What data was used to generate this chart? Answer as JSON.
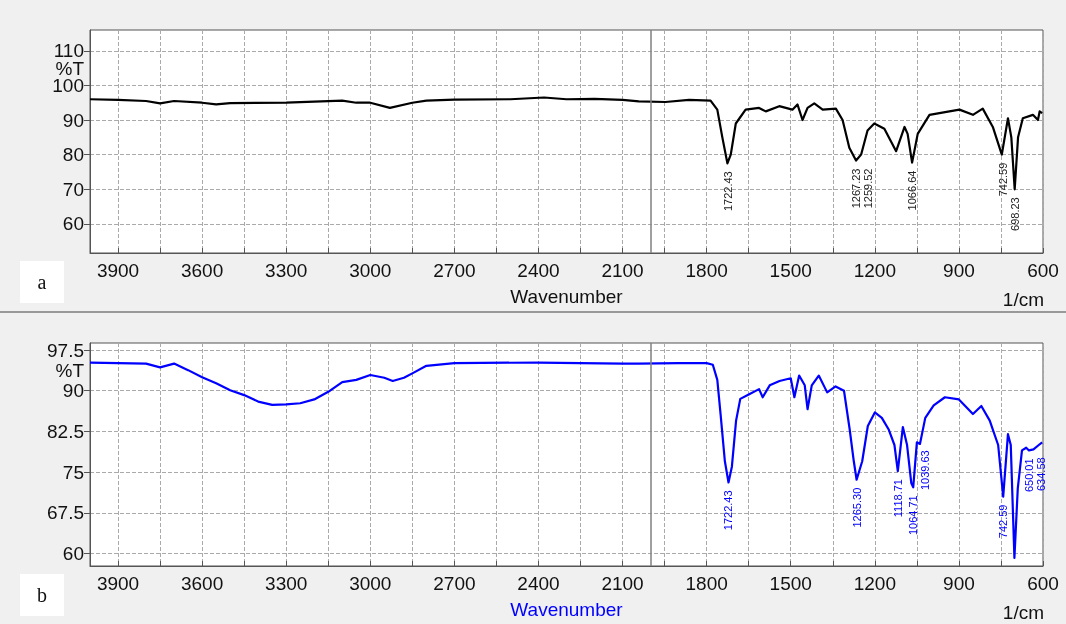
{
  "chart_data": [
    {
      "type": "line",
      "title": "a",
      "xlabel": "Wavenumber",
      "ylabel": "%T",
      "annotations": [
        "1/cm",
        {
          "text": "1722.43",
          "x": 1722.43,
          "y": 77.5
        },
        {
          "text": "1267.23",
          "x": 1267.23,
          "y": 78.3
        },
        {
          "text": "1259.52",
          "x": 1259.52,
          "y": 78.3
        },
        {
          "text": "1066.64",
          "x": 1066.64,
          "y": 77.7
        },
        {
          "text": "742.59",
          "x": 742.59,
          "y": 80
        },
        {
          "text": "698.23",
          "x": 698.23,
          "y": 70
        }
      ],
      "xlim": [
        4000,
        600
      ],
      "ylim": [
        51.6,
        116
      ],
      "xticks": [
        3900,
        {
          "value": 3750,
          "label": null
        },
        3600,
        {
          "value": 3450,
          "label": null
        },
        3300,
        {
          "value": 3150,
          "label": null
        },
        3000,
        {
          "value": 2850,
          "label": null
        },
        2700,
        {
          "value": 2550,
          "label": null
        },
        2400,
        {
          "value": 2250,
          "label": null
        },
        2100,
        {
          "value": 1950,
          "label": null
        },
        1800,
        {
          "value": 1650,
          "label": null
        },
        1500,
        {
          "value": 1350,
          "label": null
        },
        1200,
        {
          "value": 1050,
          "label": null
        },
        900,
        {
          "value": 750,
          "label": null
        },
        600
      ],
      "yticks": [
        60,
        70,
        80,
        90,
        100,
        110
      ],
      "grid": true,
      "marker": "none",
      "line_style": "solid",
      "ref_lines": [
        {
          "axis": "x",
          "value": 2000,
          "color": "#808080"
        }
      ],
      "series": [
        {
          "color": "#000000",
          "x": [
            4000,
            3900,
            3800,
            3750,
            3700,
            3600,
            3550,
            3500,
            3300,
            3100,
            3050,
            3000,
            2930,
            2850,
            2800,
            2700,
            2500,
            2380,
            2300,
            2200,
            2100,
            2042,
            1947,
            1863,
            1786,
            1762,
            1744,
            1726,
            1714,
            1696,
            1661,
            1613,
            1589,
            1541,
            1494,
            1476,
            1458,
            1440,
            1416,
            1386,
            1339,
            1315,
            1291,
            1267,
            1249,
            1226,
            1202,
            1166,
            1124,
            1094,
            1083,
            1067,
            1047,
            1005,
            934,
            898,
            850,
            815,
            779,
            747,
            725,
            713,
            701,
            689,
            672,
            636,
            618,
            612,
            603
          ],
          "values": [
            96,
            95.8,
            95.5,
            94.8,
            95.5,
            95,
            94.5,
            94.9,
            95,
            95.6,
            95,
            95,
            93.5,
            95,
            95.6,
            95.9,
            96,
            96.5,
            96,
            96.1,
            95.8,
            95.4,
            95.2,
            95.8,
            95.6,
            93,
            85,
            77.5,
            80,
            89,
            93,
            93.5,
            92.5,
            94,
            93,
            94.5,
            90,
            93.5,
            94.8,
            93,
            93.3,
            90,
            82,
            78.3,
            80,
            87,
            89,
            87.5,
            81,
            88,
            86,
            77.7,
            86,
            91.5,
            92.5,
            93,
            91.5,
            93.3,
            88,
            80,
            90.5,
            85,
            70,
            85,
            90.5,
            91.5,
            90,
            92.5,
            92
          ]
        }
      ]
    },
    {
      "type": "line",
      "title": "b",
      "xlabel": "Wavenumber",
      "ylabel": "%T",
      "annotations": [
        "1/cm",
        {
          "text": "1722.43",
          "x": 1722.43,
          "y": 73.1
        },
        {
          "text": "1265.30",
          "x": 1265.3,
          "y": 73.6
        },
        {
          "text": "1118.71",
          "x": 1118.71,
          "y": 75.2
        },
        {
          "text": "1064.71",
          "x": 1064.71,
          "y": 72.2
        },
        {
          "text": "1039.63",
          "x": 1039.63,
          "y": 80.5
        },
        {
          "text": "742.59",
          "x": 742.59,
          "y": 70.5
        },
        {
          "text": "650.01",
          "x": 650.01,
          "y": 79
        },
        {
          "text": "634.58",
          "x": 634.58,
          "y": 79.2
        }
      ],
      "xlim": [
        4000,
        600
      ],
      "ylim": [
        57.7,
        98.8
      ],
      "xticks": [
        3900,
        {
          "value": 3750,
          "label": null
        },
        3600,
        {
          "value": 3450,
          "label": null
        },
        3300,
        {
          "value": 3150,
          "label": null
        },
        3000,
        {
          "value": 2850,
          "label": null
        },
        2700,
        {
          "value": 2550,
          "label": null
        },
        2400,
        {
          "value": 2250,
          "label": null
        },
        2100,
        {
          "value": 1950,
          "label": null
        },
        1800,
        {
          "value": 1650,
          "label": null
        },
        1500,
        {
          "value": 1350,
          "label": null
        },
        1200,
        {
          "value": 1050,
          "label": null
        },
        900,
        {
          "value": 750,
          "label": null
        },
        600
      ],
      "yticks": [
        60,
        67.5,
        75,
        82.5,
        90,
        97.5
      ],
      "grid": true,
      "marker": "none",
      "line_style": "solid",
      "ref_lines": [
        {
          "axis": "x",
          "value": 2000,
          "color": "#808080"
        }
      ],
      "series": [
        {
          "color": "#0000ff",
          "x": [
            4000,
            3800,
            3750,
            3700,
            3650,
            3600,
            3550,
            3500,
            3450,
            3400,
            3350,
            3300,
            3250,
            3200,
            3150,
            3100,
            3050,
            3000,
            2950,
            2920,
            2880,
            2850,
            2800,
            2700,
            2400,
            2100,
            2042,
            1900,
            1800,
            1778,
            1762,
            1750,
            1735,
            1722,
            1710,
            1695,
            1680,
            1650,
            1613,
            1600,
            1575,
            1540,
            1500,
            1487,
            1470,
            1450,
            1440,
            1425,
            1400,
            1370,
            1340,
            1310,
            1290,
            1275,
            1265,
            1245,
            1225,
            1200,
            1175,
            1150,
            1130,
            1118,
            1100,
            1085,
            1070,
            1063,
            1050,
            1039,
            1020,
            990,
            950,
            900,
            850,
            820,
            790,
            760,
            742,
            725,
            715,
            702,
            690,
            675,
            660,
            650,
            634,
            615,
            603
          ],
          "values": [
            95.2,
            95,
            94.3,
            95,
            93.8,
            92.5,
            91.4,
            90.1,
            89.2,
            88,
            87.4,
            87.5,
            87.7,
            88.4,
            89.8,
            91.6,
            92,
            92.9,
            92.4,
            91.8,
            92.4,
            93.2,
            94.6,
            95.1,
            95.2,
            95,
            95,
            95.1,
            95.1,
            94.8,
            92,
            85.5,
            77,
            73.1,
            76,
            84.5,
            88.5,
            89.3,
            90.3,
            88.8,
            91,
            91.8,
            92.3,
            88.8,
            92.8,
            91,
            86.6,
            91,
            92.8,
            89.7,
            90.8,
            90,
            83,
            77,
            73.6,
            77,
            83.5,
            86,
            85,
            82.8,
            80,
            75.2,
            83.3,
            80,
            73,
            72.2,
            80.5,
            80.2,
            85,
            87.3,
            88.8,
            88.4,
            85.7,
            87.2,
            84.5,
            80,
            70.5,
            82,
            80,
            59.2,
            72,
            79,
            79.5,
            79,
            79.2,
            80,
            80.5
          ]
        }
      ]
    }
  ]
}
